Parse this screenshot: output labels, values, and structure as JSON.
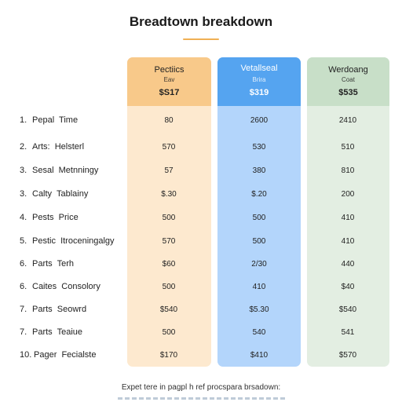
{
  "title": "Breadtown breakdown",
  "plans": [
    {
      "name": "Pectiics",
      "sub": "Eav",
      "price": "$S17"
    },
    {
      "name": "Vetallseal",
      "sub": "Brira",
      "price": "$319"
    },
    {
      "name": "Werdoang",
      "sub": "Coat",
      "price": "$535"
    }
  ],
  "rows": [
    {
      "num": "1.",
      "label": "Pepal  Time",
      "values": [
        "80",
        "2600",
        "2410"
      ]
    },
    {
      "num": "2.",
      "label": "Arts:  Helsterl",
      "values": [
        "570",
        "530",
        "510"
      ]
    },
    {
      "num": "3.",
      "label": "Sesal  Metnningy",
      "values": [
        "57",
        "380",
        "810"
      ]
    },
    {
      "num": "3.",
      "label": "Calty  Tablainy",
      "values": [
        "$.30",
        "$.20",
        "200"
      ]
    },
    {
      "num": "4.",
      "label": "Pests  Price",
      "values": [
        "500",
        "500",
        "410"
      ]
    },
    {
      "num": "5.",
      "label": "Pestic  Itroceningalgy",
      "values": [
        "570",
        "500",
        "410"
      ]
    },
    {
      "num": "6.",
      "label": "Parts  Terh",
      "values": [
        "$60",
        "2/30",
        "440"
      ]
    },
    {
      "num": "6.",
      "label": "Caites  Consolory",
      "values": [
        "500",
        "410",
        "$40"
      ]
    },
    {
      "num": "7.",
      "label": "Parts  Seowrd",
      "values": [
        "$540",
        "$5.30",
        "$540"
      ]
    },
    {
      "num": "7.",
      "label": "Parts  Teaiue",
      "values": [
        "500",
        "540",
        "541"
      ]
    },
    {
      "num": "10.",
      "label": "Pager  Fecialste",
      "values": [
        "$170",
        "$410",
        "$570"
      ]
    }
  ],
  "footer": "Expet tere in pagpl h ref procspara brsadown:"
}
